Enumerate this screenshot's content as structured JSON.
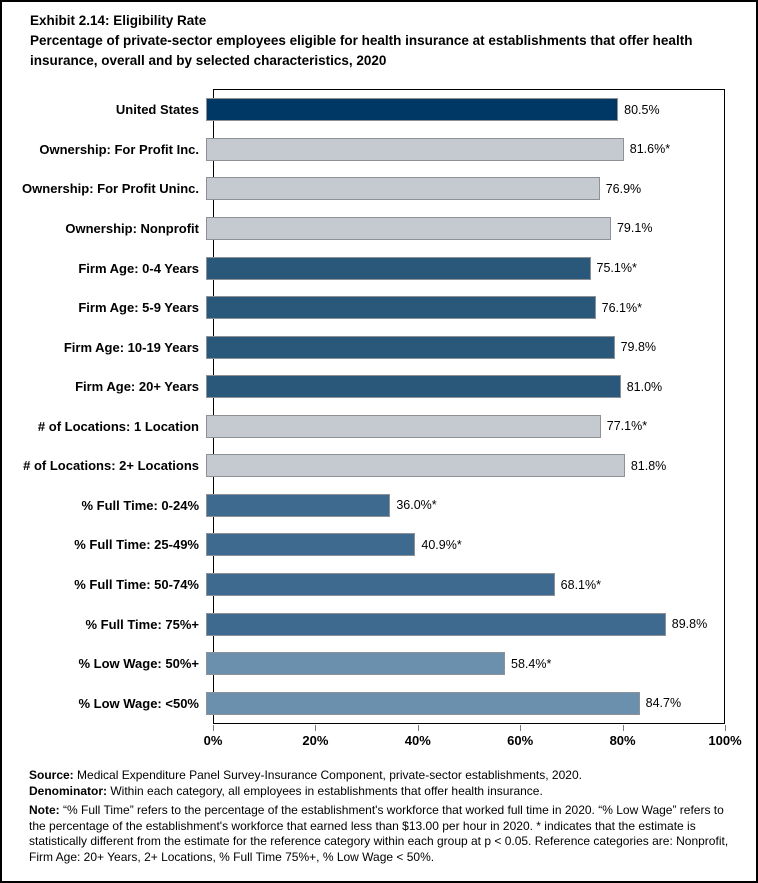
{
  "title": "Exhibit 2.14: Eligibility Rate",
  "subtitle": "Percentage of private-sector employees eligible for health insurance at establishments that offer health insurance, overall and by selected characteristics, 2020",
  "chart_data": {
    "type": "bar",
    "orientation": "horizontal",
    "xlabel": "",
    "ylabel": "",
    "xlim": [
      0,
      100
    ],
    "x_ticks": [
      "0%",
      "20%",
      "40%",
      "60%",
      "80%",
      "100%"
    ],
    "grid": false,
    "legend": "none",
    "colors": {
      "navy": "#003865",
      "gray": "#C5CAD1",
      "steel_dark": "#29587B",
      "steel": "#3D6A8E",
      "slate": "#6B90AE",
      "bar_border": "#8E9296"
    },
    "bars": [
      {
        "category": "United States",
        "value": 80.5,
        "display": "80.5%",
        "color": "navy"
      },
      {
        "category": "Ownership: For Profit Inc.",
        "value": 81.6,
        "display": "81.6%*",
        "color": "gray"
      },
      {
        "category": "Ownership: For Profit Uninc.",
        "value": 76.9,
        "display": "76.9%",
        "color": "gray"
      },
      {
        "category": "Ownership: Nonprofit",
        "value": 79.1,
        "display": "79.1%",
        "color": "gray"
      },
      {
        "category": "Firm Age: 0-4 Years",
        "value": 75.1,
        "display": "75.1%*",
        "color": "steel_dark"
      },
      {
        "category": "Firm Age: 5-9 Years",
        "value": 76.1,
        "display": "76.1%*",
        "color": "steel_dark"
      },
      {
        "category": "Firm Age: 10-19 Years",
        "value": 79.8,
        "display": "79.8%",
        "color": "steel_dark"
      },
      {
        "category": "Firm Age: 20+ Years",
        "value": 81.0,
        "display": "81.0%",
        "color": "steel_dark"
      },
      {
        "category": "# of Locations: 1 Location",
        "value": 77.1,
        "display": "77.1%*",
        "color": "gray"
      },
      {
        "category": "# of Locations: 2+ Locations",
        "value": 81.8,
        "display": "81.8%",
        "color": "gray"
      },
      {
        "category": "% Full Time: 0-24%",
        "value": 36.0,
        "display": "36.0%*",
        "color": "steel"
      },
      {
        "category": "% Full Time: 25-49%",
        "value": 40.9,
        "display": "40.9%*",
        "color": "steel"
      },
      {
        "category": "% Full Time: 50-74%",
        "value": 68.1,
        "display": "68.1%*",
        "color": "steel"
      },
      {
        "category": "% Full Time: 75%+",
        "value": 89.8,
        "display": "89.8%",
        "color": "steel"
      },
      {
        "category": "% Low Wage: 50%+",
        "value": 58.4,
        "display": "58.4%*",
        "color": "slate"
      },
      {
        "category": "% Low Wage: <50%",
        "value": 84.7,
        "display": "84.7%",
        "color": "slate"
      }
    ]
  },
  "footer": {
    "source_label": "Source:",
    "source_text": "Medical Expenditure Panel Survey-Insurance Component, private-sector establishments, 2020.",
    "denominator_label": "Denominator:",
    "denominator_text": "Within each category, all employees in establishments that offer health insurance.",
    "note_label": "Note:",
    "note_text": "“% Full Time” refers to the percentage of the establishment's workforce that worked full time in 2020. “% Low Wage” refers to the percentage of the establishment's workforce that earned less than $13.00 per hour in 2020. * indicates that the estimate is statistically different from the estimate for the reference category within each group at p < 0.05.  Reference categories are: Nonprofit, Firm Age: 20+ Years, 2+ Locations, % Full Time 75%+, % Low Wage < 50%."
  }
}
